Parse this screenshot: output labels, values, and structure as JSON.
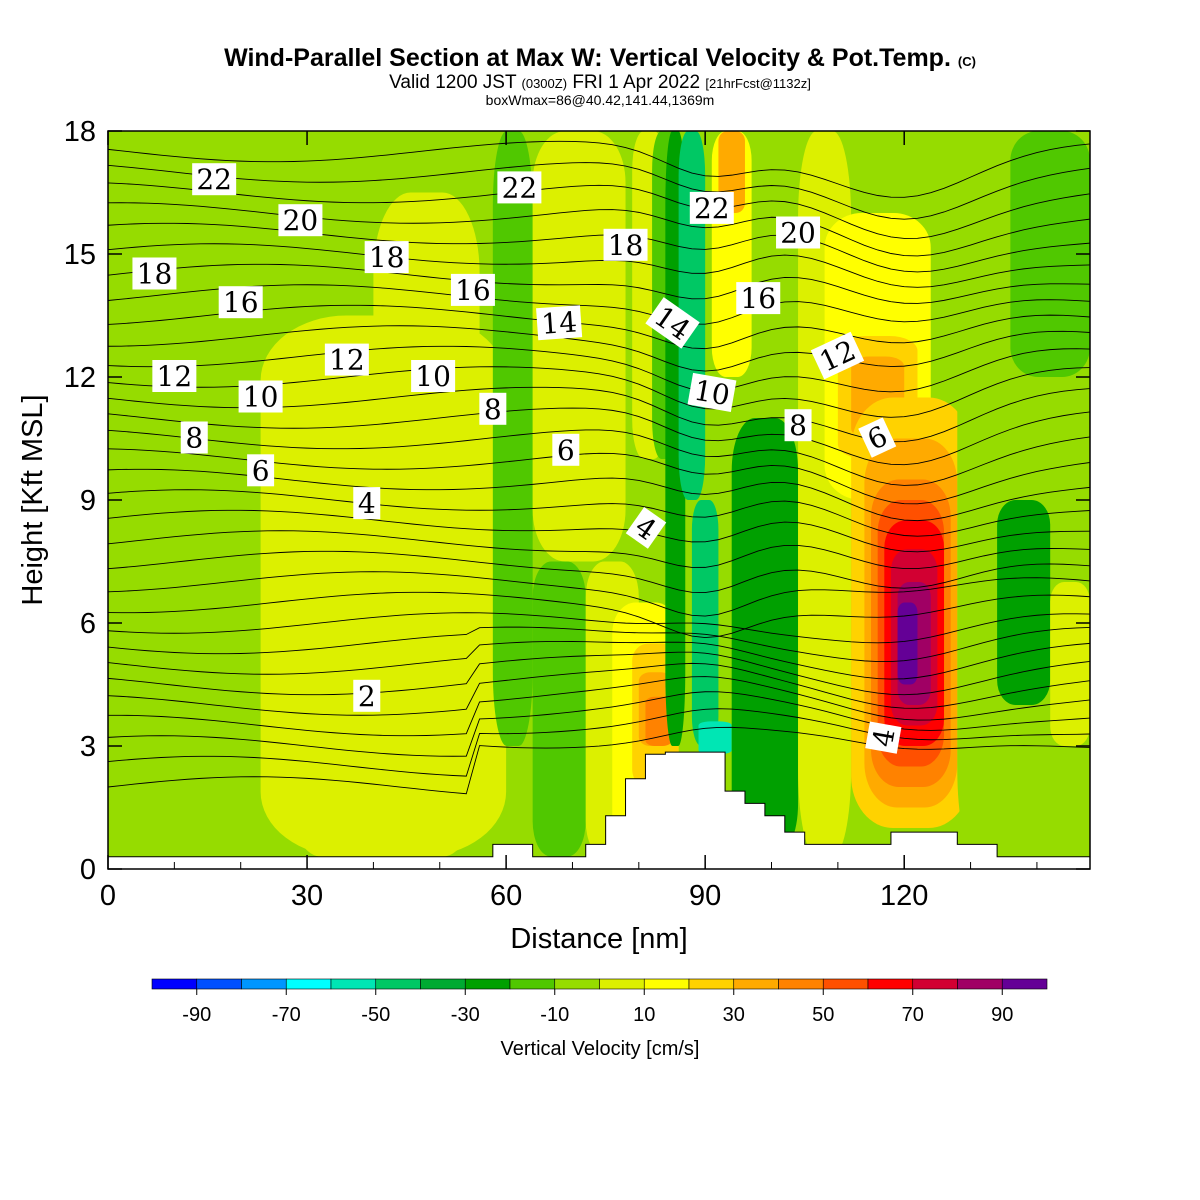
{
  "header": {
    "title_main": "Wind-Parallel Section at Max W: Vertical Velocity & Pot.Temp.",
    "title_copyright": "(C)",
    "valid_prefix": "Valid 1200 JST",
    "valid_utc": "(0300Z)",
    "valid_date": "FRI 1 Apr 2022",
    "forecast_info": "[21hrFcst@1132z]",
    "box_info": "boxWmax=86@40.42,141.44,1369m"
  },
  "chart_data": {
    "type": "heatmap",
    "xlabel": "Distance [nm]",
    "ylabel": "Height [Kft MSL]",
    "xlim": [
      0,
      148
    ],
    "ylim": [
      0,
      18
    ],
    "x_ticks": [
      "0",
      "30",
      "60",
      "90",
      "120"
    ],
    "y_ticks": [
      "0",
      "3",
      "6",
      "9",
      "12",
      "15",
      "18"
    ],
    "colorbar": {
      "label": "Vertical Velocity [cm/s]",
      "tick_labels": [
        "-90",
        "-70",
        "-50",
        "-30",
        "-10",
        "10",
        "30",
        "50",
        "70",
        "90"
      ],
      "bounds": [
        -100,
        -90,
        -80,
        -70,
        -60,
        -50,
        -40,
        -30,
        -20,
        -10,
        0,
        10,
        20,
        30,
        40,
        50,
        60,
        70,
        80,
        90,
        100
      ],
      "colors": [
        "#0000ff",
        "#0050ff",
        "#0096ff",
        "#00ffff",
        "#00e6b4",
        "#00c864",
        "#00aa32",
        "#00a000",
        "#50c800",
        "#96dc00",
        "#dcf000",
        "#ffff00",
        "#ffd200",
        "#ffaa00",
        "#ff8200",
        "#ff5000",
        "#ff0000",
        "#d20032",
        "#a00064",
        "#640096"
      ]
    },
    "vertical_velocity_cells": [
      {
        "x": [
          0,
          40
        ],
        "y": [
          0.3,
          18
        ],
        "w": -5
      },
      {
        "x": [
          23,
          60
        ],
        "y": [
          0.3,
          13.5
        ],
        "w": 5
      },
      {
        "x": [
          28,
          40
        ],
        "y": [
          0.3,
          9
        ],
        "w": 5
      },
      {
        "x": [
          40,
          56
        ],
        "y": [
          0.3,
          16.5
        ],
        "w": 5
      },
      {
        "x": [
          58,
          64
        ],
        "y": [
          3,
          18
        ],
        "w": -15
      },
      {
        "x": [
          64,
          78
        ],
        "y": [
          7.5,
          18
        ],
        "w": 5
      },
      {
        "x": [
          64,
          72
        ],
        "y": [
          0.3,
          7.5
        ],
        "w": -15
      },
      {
        "x": [
          72,
          80
        ],
        "y": [
          0.3,
          7.5
        ],
        "w": 5
      },
      {
        "x": [
          76,
          86
        ],
        "y": [
          0.3,
          6.5
        ],
        "w": 15
      },
      {
        "x": [
          79,
          86
        ],
        "y": [
          2,
          5.5
        ],
        "w": 25
      },
      {
        "x": [
          80,
          85
        ],
        "y": [
          3,
          4.8
        ],
        "w": 35
      },
      {
        "x": [
          81,
          85
        ],
        "y": [
          3,
          4.2
        ],
        "w": 45
      },
      {
        "x": [
          79,
          84
        ],
        "y": [
          10,
          18
        ],
        "w": 5
      },
      {
        "x": [
          82,
          86
        ],
        "y": [
          10,
          18
        ],
        "w": -15
      },
      {
        "x": [
          84,
          87
        ],
        "y": [
          3,
          18
        ],
        "w": -25
      },
      {
        "x": [
          86,
          90
        ],
        "y": [
          9,
          18
        ],
        "w": -45
      },
      {
        "x": [
          88,
          92
        ],
        "y": [
          3,
          9
        ],
        "w": -45
      },
      {
        "x": [
          89,
          94
        ],
        "y": [
          2.8,
          3.6
        ],
        "w": -55
      },
      {
        "x": [
          91,
          97
        ],
        "y": [
          12,
          18
        ],
        "w": 15
      },
      {
        "x": [
          92,
          96
        ],
        "y": [
          16,
          18
        ],
        "w": 35
      },
      {
        "x": [
          94,
          104
        ],
        "y": [
          0.3,
          11
        ],
        "w": -25
      },
      {
        "x": [
          104,
          112
        ],
        "y": [
          0.3,
          18
        ],
        "w": 5
      },
      {
        "x": [
          108,
          124
        ],
        "y": [
          9,
          16
        ],
        "w": 15
      },
      {
        "x": [
          110,
          122
        ],
        "y": [
          10,
          13
        ],
        "w": 25
      },
      {
        "x": [
          112,
          120
        ],
        "y": [
          10.5,
          12.5
        ],
        "w": 35
      },
      {
        "x": [
          112,
          130
        ],
        "y": [
          1,
          11.5
        ],
        "w": 25
      },
      {
        "x": [
          114,
          128
        ],
        "y": [
          1.5,
          10.5
        ],
        "w": 35
      },
      {
        "x": [
          115,
          127
        ],
        "y": [
          2,
          9.5
        ],
        "w": 45
      },
      {
        "x": [
          116,
          126
        ],
        "y": [
          2.5,
          9
        ],
        "w": 55
      },
      {
        "x": [
          117,
          126
        ],
        "y": [
          3,
          8.5
        ],
        "w": 65
      },
      {
        "x": [
          118,
          125
        ],
        "y": [
          3.5,
          7.8
        ],
        "w": 75
      },
      {
        "x": [
          119,
          124
        ],
        "y": [
          4,
          7
        ],
        "w": 85
      },
      {
        "x": [
          119,
          122
        ],
        "y": [
          4.5,
          6.5
        ],
        "w": 95
      },
      {
        "x": [
          128,
          136
        ],
        "y": [
          0.3,
          18
        ],
        "w": -5
      },
      {
        "x": [
          134,
          142
        ],
        "y": [
          4,
          9
        ],
        "w": -25
      },
      {
        "x": [
          136,
          148
        ],
        "y": [
          12,
          18
        ],
        "w": -15
      },
      {
        "x": [
          142,
          148
        ],
        "y": [
          3,
          7
        ],
        "w": 5
      }
    ],
    "potential_temperature": {
      "contour_values": [
        "2",
        "4",
        "6",
        "8",
        "10",
        "12",
        "14",
        "16",
        "18",
        "20",
        "22"
      ],
      "labels": [
        {
          "text": "22",
          "x": 16,
          "y": 16.8,
          "angle": 0
        },
        {
          "text": "20",
          "x": 29,
          "y": 15.8,
          "angle": 0
        },
        {
          "text": "18",
          "x": 7,
          "y": 14.5,
          "angle": 0
        },
        {
          "text": "18",
          "x": 42,
          "y": 14.9,
          "angle": 0
        },
        {
          "text": "16",
          "x": 20,
          "y": 13.8,
          "angle": 0
        },
        {
          "text": "16",
          "x": 55,
          "y": 14.1,
          "angle": 0
        },
        {
          "text": "14",
          "x": 68,
          "y": 13.3,
          "angle": -4
        },
        {
          "text": "12",
          "x": 10,
          "y": 12.0,
          "angle": 0
        },
        {
          "text": "12",
          "x": 36,
          "y": 12.4,
          "angle": 0
        },
        {
          "text": "10",
          "x": 23,
          "y": 11.5,
          "angle": 0
        },
        {
          "text": "10",
          "x": 49,
          "y": 12.0,
          "angle": 0
        },
        {
          "text": "8",
          "x": 13,
          "y": 10.5,
          "angle": 0
        },
        {
          "text": "8",
          "x": 58,
          "y": 11.2,
          "angle": 0
        },
        {
          "text": "6",
          "x": 23,
          "y": 9.7,
          "angle": 0
        },
        {
          "text": "6",
          "x": 69,
          "y": 10.2,
          "angle": 0
        },
        {
          "text": "4",
          "x": 39,
          "y": 8.9,
          "angle": 0
        },
        {
          "text": "4",
          "x": 81,
          "y": 8.3,
          "angle": 35
        },
        {
          "text": "2",
          "x": 39,
          "y": 4.2,
          "angle": 0
        },
        {
          "text": "22",
          "x": 62,
          "y": 16.6,
          "angle": 0
        },
        {
          "text": "18",
          "x": 78,
          "y": 15.2,
          "angle": 0
        },
        {
          "text": "14",
          "x": 85,
          "y": 13.3,
          "angle": 35
        },
        {
          "text": "22",
          "x": 91,
          "y": 16.1,
          "angle": 0
        },
        {
          "text": "10",
          "x": 91,
          "y": 11.6,
          "angle": 10
        },
        {
          "text": "20",
          "x": 104,
          "y": 15.5,
          "angle": 0
        },
        {
          "text": "16",
          "x": 98,
          "y": 13.9,
          "angle": 0
        },
        {
          "text": "12",
          "x": 110,
          "y": 12.5,
          "angle": -25
        },
        {
          "text": "8",
          "x": 104,
          "y": 10.8,
          "angle": 0
        },
        {
          "text": "6",
          "x": 116,
          "y": 10.5,
          "angle": -25
        },
        {
          "text": "4",
          "x": 117,
          "y": 3.2,
          "angle": -80
        }
      ]
    },
    "terrain": [
      [
        0,
        0.3
      ],
      [
        58,
        0.3
      ],
      [
        58,
        0.6
      ],
      [
        64,
        0.6
      ],
      [
        64,
        0.3
      ],
      [
        72,
        0.3
      ],
      [
        72,
        0.6
      ],
      [
        75,
        0.6
      ],
      [
        75,
        1.3
      ],
      [
        78,
        1.3
      ],
      [
        78,
        2.2
      ],
      [
        81,
        2.2
      ],
      [
        81,
        2.8
      ],
      [
        84,
        2.8
      ],
      [
        84,
        2.85
      ],
      [
        93,
        2.85
      ],
      [
        93,
        1.9
      ],
      [
        96,
        1.9
      ],
      [
        96,
        1.6
      ],
      [
        99,
        1.6
      ],
      [
        99,
        1.3
      ],
      [
        102,
        1.3
      ],
      [
        102,
        0.9
      ],
      [
        105,
        0.9
      ],
      [
        105,
        0.6
      ],
      [
        118,
        0.6
      ],
      [
        118,
        0.9
      ],
      [
        128,
        0.9
      ],
      [
        128,
        0.6
      ],
      [
        134,
        0.6
      ],
      [
        134,
        0.3
      ],
      [
        148,
        0.3
      ]
    ]
  }
}
